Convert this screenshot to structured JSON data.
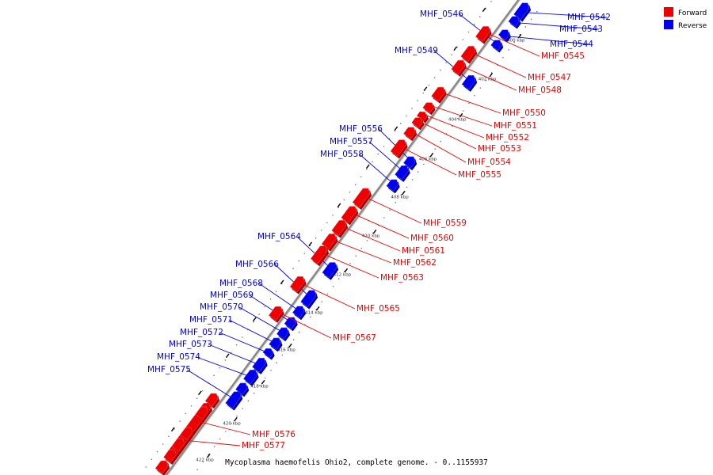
{
  "title": "Mycoplasma haemofelis Ohio2, complete genome. - 0..1155937",
  "legend": [
    {
      "label": "Forward",
      "color": "#ee0000"
    },
    {
      "label": "Reverse",
      "color": "#0000ee"
    }
  ],
  "colors": {
    "forward": "#ee0000",
    "forward_dark": "#aa0000",
    "forward_light": "#ff6666",
    "reverse": "#0000ee",
    "reverse_dark": "#0000aa",
    "reverse_light": "#6666ff",
    "backbone": "#888888"
  },
  "ticks": [
    "400 kbp",
    "402 kbp",
    "404 kbp",
    "406 kbp",
    "408 kbp",
    "410 kbp",
    "412 kbp",
    "414 kbp",
    "416 kbp",
    "418 kbp",
    "420 kbp",
    "422 kbp"
  ],
  "reverse_genes": [
    "MHF_0542",
    "MHF_0543",
    "MHF_0544",
    "MHF_0546",
    "MHF_0549",
    "MHF_0556",
    "MHF_0557",
    "MHF_0558",
    "MHF_0564",
    "MHF_0566",
    "MHF_0568",
    "MHF_0569",
    "MHF_0570",
    "MHF_0571",
    "MHF_0572",
    "MHF_0573",
    "MHF_0574",
    "MHF_0575"
  ],
  "forward_genes": [
    "MHF_0545",
    "MHF_0547",
    "MHF_0548",
    "MHF_0550",
    "MHF_0551",
    "MHF_0552",
    "MHF_0553",
    "MHF_0554",
    "MHF_0555",
    "MHF_0559",
    "MHF_0560",
    "MHF_0561",
    "MHF_0562",
    "MHF_0563",
    "MHF_0565",
    "MHF_0567",
    "MHF_0576",
    "MHF_0577"
  ]
}
